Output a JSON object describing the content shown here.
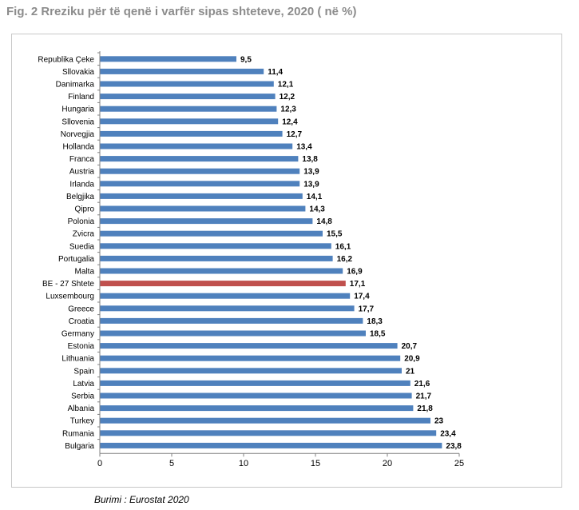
{
  "figure": {
    "title": "Fig. 2 Rreziku për të qenë i varfër sipas shteteve, 2020 ( në %)",
    "source": "Burimi : Eurostat 2020"
  },
  "colors": {
    "bar": "#4f81bd",
    "highlight": "#c0504d",
    "title": "#8c8c8c"
  },
  "chart_data": {
    "type": "bar",
    "orientation": "horizontal",
    "title": "Fig. 2 Rreziku për të qenë i varfër sipas shteteve, 2020 ( në %)",
    "xlabel": "",
    "ylabel": "",
    "xlim": [
      0,
      25
    ],
    "xticks": [
      0,
      5,
      10,
      15,
      20,
      25
    ],
    "grid": false,
    "legend": "none",
    "highlighted_category": "BE - 27 Shtete",
    "categories": [
      "Republika Çeke",
      "Sllovakia",
      "Danimarka",
      "Finland",
      "Hungaria",
      "Sllovenia",
      "Norvegjia",
      "Hollanda",
      "Franca",
      "Austria",
      "Irlanda",
      "Belgjika",
      "Qipro",
      "Polonia",
      "Zvicra",
      "Suedia",
      "Portugalia",
      "Malta",
      "BE - 27 Shtete",
      "Luxsembourg",
      "Greece",
      "Croatia",
      "Germany",
      "Estonia",
      "Lithuania",
      "Spain",
      "Latvia",
      "Serbia",
      "Albania",
      "Turkey",
      "Rumania",
      "Bulgaria"
    ],
    "values": [
      9.5,
      11.4,
      12.1,
      12.2,
      12.3,
      12.4,
      12.7,
      13.4,
      13.8,
      13.9,
      13.9,
      14.1,
      14.3,
      14.8,
      15.5,
      16.1,
      16.2,
      16.9,
      17.1,
      17.4,
      17.7,
      18.3,
      18.5,
      20.7,
      20.9,
      21,
      21.6,
      21.7,
      21.8,
      23,
      23.4,
      23.8
    ],
    "value_labels": [
      "9,5",
      "11,4",
      "12,1",
      "12,2",
      "12,3",
      "12,4",
      "12,7",
      "13,4",
      "13,8",
      "13,9",
      "13,9",
      "14,1",
      "14,3",
      "14,8",
      "15,5",
      "16,1",
      "16,2",
      "16,9",
      "17,1",
      "17,4",
      "17,7",
      "18,3",
      "18,5",
      "20,7",
      "20,9",
      "21",
      "21,6",
      "21,7",
      "21,8",
      "23",
      "23,4",
      "23,8"
    ]
  }
}
